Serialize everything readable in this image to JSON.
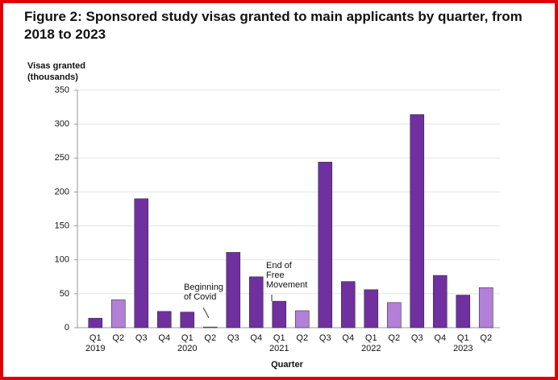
{
  "chart_data": {
    "type": "bar",
    "title": "Figure 2: Sponsored study visas granted to main applicants by quarter, from 2018 to 2023",
    "y_label": [
      "Visas granted",
      "(thousands)"
    ],
    "x_label": "Quarter",
    "categories": [
      "Q1",
      "Q2",
      "Q3",
      "Q4",
      "Q1",
      "Q2",
      "Q3",
      "Q4",
      "Q1",
      "Q2",
      "Q3",
      "Q4",
      "Q1",
      "Q2",
      "Q3",
      "Q4",
      "Q1",
      "Q2"
    ],
    "years": [
      "2019",
      null,
      null,
      null,
      "2020",
      null,
      null,
      null,
      "2021",
      null,
      null,
      null,
      "2022",
      null,
      null,
      null,
      "2023",
      null
    ],
    "values": [
      14,
      41,
      190,
      24,
      23,
      1,
      111,
      75,
      39,
      25,
      244,
      68,
      56,
      37,
      314,
      77,
      48,
      59
    ],
    "colors": [
      "#7030a0",
      "#b37fd9",
      "#7030a0",
      "#7030a0",
      "#7030a0",
      "#b37fd9",
      "#7030a0",
      "#7030a0",
      "#7030a0",
      "#b37fd9",
      "#7030a0",
      "#7030a0",
      "#7030a0",
      "#b37fd9",
      "#7030a0",
      "#7030a0",
      "#7030a0",
      "#b37fd9"
    ],
    "ylim": [
      0,
      350
    ],
    "yticks": [
      0,
      50,
      100,
      150,
      200,
      250,
      300,
      350
    ],
    "grid": true,
    "annotations": [
      {
        "lines": [
          "Beginning",
          "of Covid"
        ]
      },
      {
        "lines": [
          "End of",
          "Free",
          "Movement"
        ]
      }
    ]
  }
}
